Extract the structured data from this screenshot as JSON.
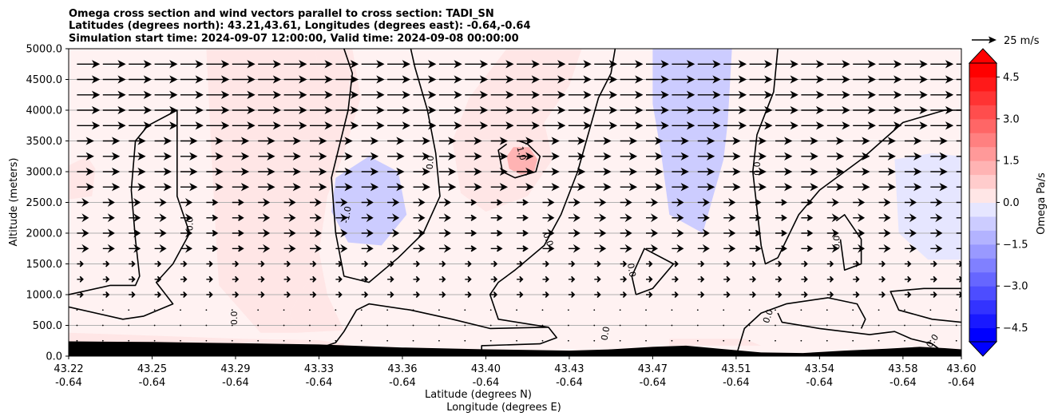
{
  "chart_data": {
    "type": "contour",
    "title_lines": [
      "Omega cross section and wind vectors parallel to cross section: TADI_SN",
      "Latitudes (degrees north): 43.21,43.61, Longitudes (degrees east): -0.64,-0.64",
      "Simulation start time: 2024-09-07 12:00:00, Valid time: 2024-09-08 00:00:00"
    ],
    "xlabel": "Latitude (degrees N)",
    "xlabel2": "Longitude (degrees E)",
    "ylabel": "Altitude (meters)",
    "ylim": [
      0,
      5000
    ],
    "x_tick_latitudes": [
      "43.22",
      "43.25",
      "43.29",
      "43.33",
      "43.36",
      "43.40",
      "43.43",
      "43.47",
      "43.51",
      "43.54",
      "43.58",
      "43.60"
    ],
    "x_tick_longitudes": [
      "-0.64",
      "-0.64",
      "-0.64",
      "-0.64",
      "-0.64",
      "-0.64",
      "-0.64",
      "-0.64",
      "-0.64",
      "-0.64",
      "-0.64",
      "-0.64"
    ],
    "x_tick_positions": [
      0,
      1,
      2,
      3,
      4,
      5,
      6,
      7,
      8,
      9,
      10,
      10.7
    ],
    "x_range": [
      0,
      10.7
    ],
    "y_ticks": [
      "0.0",
      "500.0",
      "1000.0",
      "1500.0",
      "2000.0",
      "2500.0",
      "3000.0",
      "3500.0",
      "4000.0",
      "4500.0",
      "5000.0"
    ],
    "y_tick_values": [
      0,
      500,
      1000,
      1500,
      2000,
      2500,
      3000,
      3500,
      4000,
      4500,
      5000
    ],
    "gridlines": "horizontal",
    "colorbar": {
      "label": "Omega Pa/s",
      "ticks": [
        "4.5",
        "3.0",
        "1.5",
        "0.0",
        "−1.5",
        "−3.0",
        "−4.5"
      ],
      "tick_values": [
        4.5,
        3.0,
        1.5,
        0.0,
        -1.5,
        -3.0,
        -4.5
      ],
      "range": [
        -5,
        5
      ],
      "levels": 20,
      "extend": "both",
      "low_color": "#0000ff",
      "mid_color": "#ffffff",
      "high_color": "#ff0000"
    },
    "contour_labels": [
      {
        "text": "0.0",
        "x": 1.45,
        "y": 2150,
        "angle": 90
      },
      {
        "text": "0.0",
        "x": 1.98,
        "y": 620,
        "angle": 90
      },
      {
        "text": "-1.0",
        "x": 3.33,
        "y": 2300,
        "angle": 80
      },
      {
        "text": "0.0",
        "x": 4.33,
        "y": 3150,
        "angle": 85
      },
      {
        "text": "1.0",
        "x": 5.43,
        "y": 3300,
        "angle": -75
      },
      {
        "text": "0.0",
        "x": 5.75,
        "y": 1900,
        "angle": -70
      },
      {
        "text": "0.0",
        "x": 6.75,
        "y": 1400,
        "angle": -80
      },
      {
        "text": "0.0",
        "x": 6.43,
        "y": 370,
        "angle": 80
      },
      {
        "text": "0.0",
        "x": 8.25,
        "y": 3050,
        "angle": 90
      },
      {
        "text": "0.0",
        "x": 8.38,
        "y": 650,
        "angle": 70
      },
      {
        "text": "0.0",
        "x": 9.2,
        "y": 1850,
        "angle": 90
      },
      {
        "text": "0.0",
        "x": 10.35,
        "y": 250,
        "angle": 55
      }
    ],
    "omega_regions_positive": [
      {
        "points": [
          [
            1.65,
            5000
          ],
          [
            2.95,
            5000
          ],
          [
            3.05,
            4300
          ],
          [
            2.95,
            3300
          ],
          [
            2.85,
            2600
          ],
          [
            2.95,
            1900
          ],
          [
            2.9,
            1300
          ],
          [
            2.65,
            700
          ],
          [
            2.75,
            380
          ],
          [
            2.3,
            380
          ],
          [
            1.8,
            1150
          ],
          [
            1.75,
            2300
          ],
          [
            1.7,
            3600
          ]
        ],
        "omega": 0.6
      },
      {
        "points": [
          [
            2.95,
            5000
          ],
          [
            3.05,
            4300
          ],
          [
            2.95,
            3300
          ],
          [
            2.85,
            2600
          ],
          [
            2.95,
            1900
          ],
          [
            2.9,
            1300
          ],
          [
            2.65,
            700
          ],
          [
            2.75,
            380
          ],
          [
            3.3,
            420
          ],
          [
            3.1,
            1000
          ],
          [
            3.0,
            1700
          ],
          [
            3.1,
            2600
          ],
          [
            3.3,
            3300
          ],
          [
            3.5,
            4200
          ],
          [
            3.4,
            5000
          ]
        ],
        "omega": 0.6
      },
      {
        "points": [
          [
            5.25,
            5000
          ],
          [
            6.15,
            5000
          ],
          [
            6.0,
            4400
          ],
          [
            5.7,
            3800
          ],
          [
            5.8,
            3200
          ],
          [
            5.5,
            2600
          ],
          [
            5.0,
            2350
          ],
          [
            4.7,
            2650
          ],
          [
            4.6,
            3500
          ],
          [
            4.8,
            4200
          ]
        ],
        "omega": 0.7
      },
      {
        "points": [
          [
            5.33,
            3400
          ],
          [
            5.52,
            3400
          ],
          [
            5.62,
            3200
          ],
          [
            5.58,
            3000
          ],
          [
            5.42,
            2950
          ],
          [
            5.28,
            3050
          ],
          [
            5.25,
            3250
          ]
        ],
        "omega": 1.3
      },
      {
        "points": [
          [
            0.0,
            3100
          ],
          [
            0.22,
            3250
          ],
          [
            0.32,
            3050
          ],
          [
            0.28,
            2600
          ],
          [
            0.0,
            2550
          ]
        ],
        "omega": 0.6
      },
      {
        "points": [
          [
            0.0,
            380
          ],
          [
            2.1,
            280
          ],
          [
            3.0,
            260
          ],
          [
            3.3,
            200
          ],
          [
            3.3,
            0
          ],
          [
            0.0,
            0
          ]
        ],
        "omega": 0.4
      },
      {
        "points": [
          [
            7.2,
            280
          ],
          [
            8.1,
            280
          ],
          [
            8.3,
            170
          ],
          [
            7.2,
            170
          ]
        ],
        "omega": 0.5
      }
    ],
    "omega_regions_negative": [
      {
        "points": [
          [
            7.0,
            5000
          ],
          [
            7.95,
            5000
          ],
          [
            7.9,
            3800
          ],
          [
            7.85,
            3200
          ],
          [
            7.6,
            2000
          ],
          [
            7.2,
            2300
          ],
          [
            7.1,
            3300
          ],
          [
            7.0,
            4100
          ]
        ],
        "omega": -0.8
      },
      {
        "points": [
          [
            3.2,
            2900
          ],
          [
            3.6,
            3250
          ],
          [
            3.95,
            3000
          ],
          [
            4.05,
            2300
          ],
          [
            3.75,
            1800
          ],
          [
            3.35,
            1850
          ],
          [
            3.15,
            2350
          ]
        ],
        "omega": -0.9
      },
      {
        "points": [
          [
            9.9,
            3200
          ],
          [
            10.35,
            3300
          ],
          [
            10.7,
            3250
          ],
          [
            10.7,
            1570
          ],
          [
            10.3,
            1570
          ],
          [
            9.95,
            2000
          ]
        ],
        "omega": -0.6
      }
    ],
    "omega_zero_contours": [
      [
        [
          0.0,
          1000
        ],
        [
          0.5,
          1150
        ],
        [
          0.55,
          1150
        ],
        [
          0.8,
          1150
        ],
        [
          0.85,
          1300
        ],
        [
          0.8,
          1900
        ],
        [
          0.75,
          2700
        ],
        [
          0.8,
          3500
        ],
        [
          0.95,
          3750
        ],
        [
          1.3,
          4000
        ],
        [
          1.3,
          3400
        ],
        [
          1.3,
          2600
        ],
        [
          1.45,
          2000
        ],
        [
          1.25,
          1500
        ],
        [
          1.05,
          1200
        ],
        [
          1.25,
          850
        ],
        [
          0.9,
          650
        ],
        [
          0.65,
          600
        ],
        [
          0.0,
          800
        ]
      ],
      [
        [
          3.3,
          5000
        ],
        [
          3.4,
          4600
        ],
        [
          3.35,
          4000
        ],
        [
          3.15,
          2900
        ],
        [
          3.2,
          2000
        ],
        [
          3.3,
          1300
        ],
        [
          3.6,
          1200
        ],
        [
          3.95,
          1600
        ],
        [
          4.25,
          2000
        ],
        [
          4.45,
          2600
        ],
        [
          4.4,
          3300
        ],
        [
          4.3,
          4000
        ],
        [
          4.15,
          4700
        ],
        [
          4.1,
          5000
        ]
      ],
      [
        [
          5.4,
          3500
        ],
        [
          5.5,
          3450
        ],
        [
          5.65,
          3250
        ],
        [
          5.6,
          3000
        ],
        [
          5.35,
          2900
        ],
        [
          5.2,
          3000
        ],
        [
          5.15,
          3350
        ],
        [
          5.25,
          3450
        ]
      ],
      [
        [
          6.55,
          5000
        ],
        [
          6.5,
          4600
        ],
        [
          6.35,
          4200
        ],
        [
          6.1,
          3000
        ],
        [
          5.9,
          2300
        ],
        [
          5.7,
          1800
        ],
        [
          5.35,
          1400
        ],
        [
          5.15,
          1200
        ],
        [
          5.05,
          1000
        ],
        [
          5.15,
          600
        ],
        [
          5.75,
          470
        ],
        [
          5.85,
          300
        ],
        [
          5.65,
          200
        ],
        [
          4.95,
          170
        ],
        [
          4.95,
          70
        ]
      ],
      [
        [
          3.05,
          150
        ],
        [
          3.2,
          220
        ],
        [
          3.3,
          400
        ],
        [
          3.45,
          750
        ],
        [
          3.6,
          850
        ],
        [
          4.1,
          750
        ],
        [
          4.6,
          600
        ],
        [
          5.05,
          450
        ],
        [
          5.75,
          470
        ]
      ],
      [
        [
          6.8,
          1000
        ],
        [
          6.75,
          1300
        ],
        [
          6.9,
          1750
        ],
        [
          7.25,
          1500
        ],
        [
          7.0,
          1100
        ],
        [
          6.8,
          1000
        ]
      ],
      [
        [
          8.5,
          5000
        ],
        [
          8.45,
          4300
        ],
        [
          8.25,
          3600
        ],
        [
          8.2,
          3000
        ],
        [
          8.25,
          2400
        ],
        [
          8.3,
          1800
        ],
        [
          8.35,
          1500
        ],
        [
          8.5,
          1600
        ],
        [
          8.75,
          2300
        ],
        [
          9.0,
          2700
        ],
        [
          9.5,
          3200
        ],
        [
          10.0,
          3800
        ],
        [
          10.5,
          4000
        ],
        [
          10.7,
          4000
        ]
      ],
      [
        [
          9.2,
          2200
        ],
        [
          9.3,
          2300
        ],
        [
          9.5,
          1900
        ],
        [
          9.5,
          1500
        ],
        [
          9.3,
          1400
        ],
        [
          9.25,
          1900
        ]
      ],
      [
        [
          8.5,
          700
        ],
        [
          8.55,
          550
        ],
        [
          9.0,
          450
        ],
        [
          9.6,
          350
        ],
        [
          9.9,
          400
        ],
        [
          10.1,
          280
        ],
        [
          10.35,
          200
        ],
        [
          10.45,
          100
        ]
      ],
      [
        [
          8.0,
          0
        ],
        [
          8.1,
          450
        ],
        [
          8.3,
          700
        ],
        [
          8.6,
          850
        ],
        [
          9.1,
          950
        ],
        [
          9.45,
          850
        ],
        [
          9.55,
          600
        ],
        [
          9.5,
          450
        ]
      ],
      [
        [
          10.7,
          1100
        ],
        [
          10.25,
          1100
        ],
        [
          9.85,
          1050
        ],
        [
          9.95,
          750
        ],
        [
          10.35,
          600
        ],
        [
          10.7,
          550
        ]
      ]
    ],
    "wind_vectors": {
      "rows_y": [
        0,
        250,
        500,
        750,
        1000,
        1250,
        1500,
        1750,
        2000,
        2250,
        2500,
        2750,
        3000,
        3250,
        3500,
        3750,
        4000,
        4250,
        4500,
        4750
      ],
      "cols_x_step": 0.31,
      "reference": "25 m/s",
      "reference_speed": 25
    },
    "terrain_color": "#000000",
    "terrain": [
      [
        0,
        240
      ],
      [
        1,
        230
      ],
      [
        2,
        210
      ],
      [
        3,
        190
      ],
      [
        4,
        140
      ],
      [
        5,
        110
      ],
      [
        5.5,
        100
      ],
      [
        6.0,
        90
      ],
      [
        6.5,
        110
      ],
      [
        7.0,
        150
      ],
      [
        7.4,
        170
      ],
      [
        7.8,
        120
      ],
      [
        8.3,
        60
      ],
      [
        8.8,
        50
      ],
      [
        9.3,
        90
      ],
      [
        9.8,
        120
      ],
      [
        10.2,
        150
      ],
      [
        10.5,
        130
      ],
      [
        10.7,
        110
      ]
    ],
    "legend_position": "top-right"
  }
}
